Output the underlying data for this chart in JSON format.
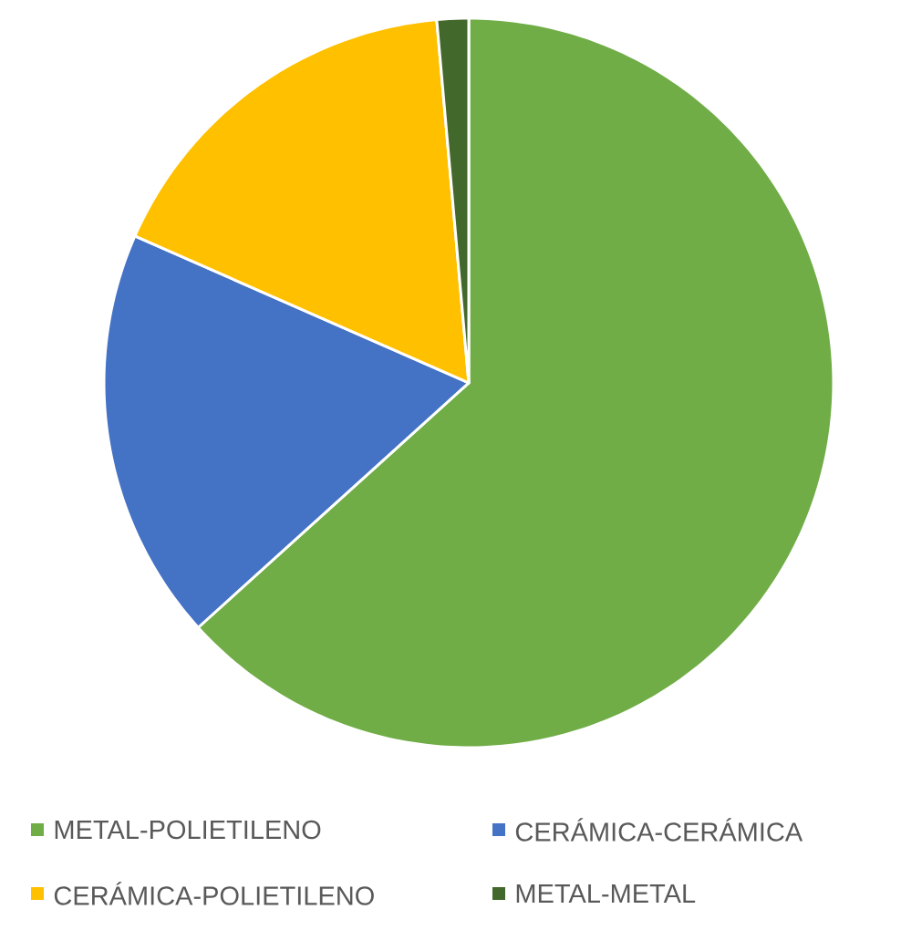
{
  "chart_data": {
    "type": "pie",
    "categories": [
      "METAL-POLIETILENO",
      "CERÁMICA-CERÁMICA",
      "CERÁMICA-POLIETILENO",
      "METAL-METAL"
    ],
    "values": [
      63.3,
      18.3,
      17.0,
      1.4
    ],
    "colors": [
      "#70ad47",
      "#4472c4",
      "#ffc000",
      "#43682b"
    ],
    "legend": "bottom"
  }
}
